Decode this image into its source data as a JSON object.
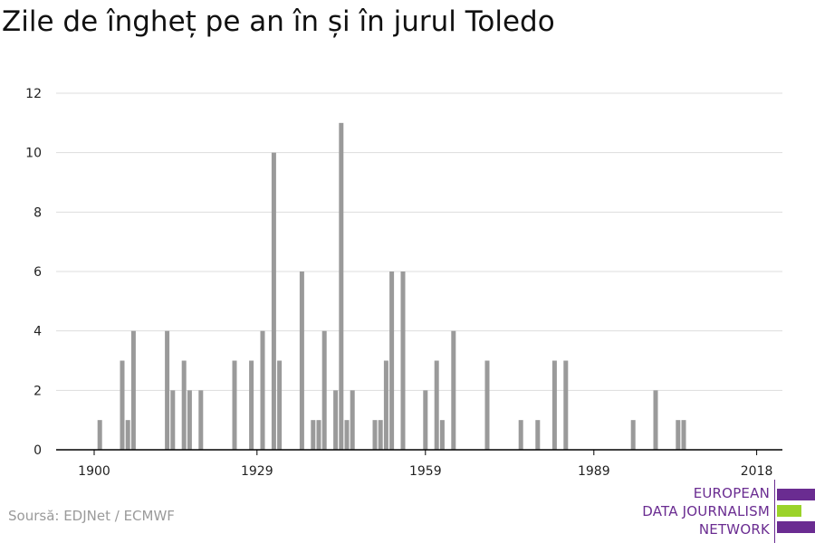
{
  "title": "Zile de îngheț pe an în și în jurul Toledo",
  "source": "Soursă: EDJNet / ECMWF",
  "logo": {
    "lines": [
      "EUROPEAN",
      "DATA JOURNALISM",
      "NETWORK"
    ],
    "colors": {
      "purple": "#6a2c91",
      "green": "#9bd32a"
    }
  },
  "colors": {
    "bar": "#9a9a9a",
    "grid": "#dddddd",
    "axis": "#000000"
  },
  "chart_data": {
    "type": "bar",
    "title": "Zile de îngheț pe an în și în jurul Toledo",
    "xlabel": "",
    "ylabel": "",
    "xlim": [
      1900,
      2020
    ],
    "ylim": [
      0,
      12
    ],
    "x_ticks": [
      1900,
      1929,
      1959,
      1989,
      2018
    ],
    "y_ticks": [
      0,
      2,
      4,
      6,
      8,
      10,
      12
    ],
    "grid": true,
    "x": [
      1901,
      1905,
      1906,
      1907,
      1913,
      1914,
      1916,
      1917,
      1919,
      1925,
      1928,
      1930,
      1932,
      1933,
      1937,
      1939,
      1940,
      1941,
      1943,
      1944,
      1945,
      1946,
      1950,
      1951,
      1952,
      1953,
      1955,
      1959,
      1961,
      1962,
      1964,
      1970,
      1976,
      1979,
      1982,
      1984,
      1996,
      2000,
      2004,
      2005
    ],
    "values": [
      1,
      3,
      1,
      4,
      4,
      2,
      3,
      2,
      2,
      3,
      3,
      4,
      10,
      3,
      6,
      1,
      1,
      4,
      2,
      11,
      1,
      2,
      1,
      1,
      3,
      6,
      6,
      2,
      3,
      1,
      4,
      3,
      1,
      1,
      3,
      3,
      1,
      2,
      1,
      1
    ]
  }
}
